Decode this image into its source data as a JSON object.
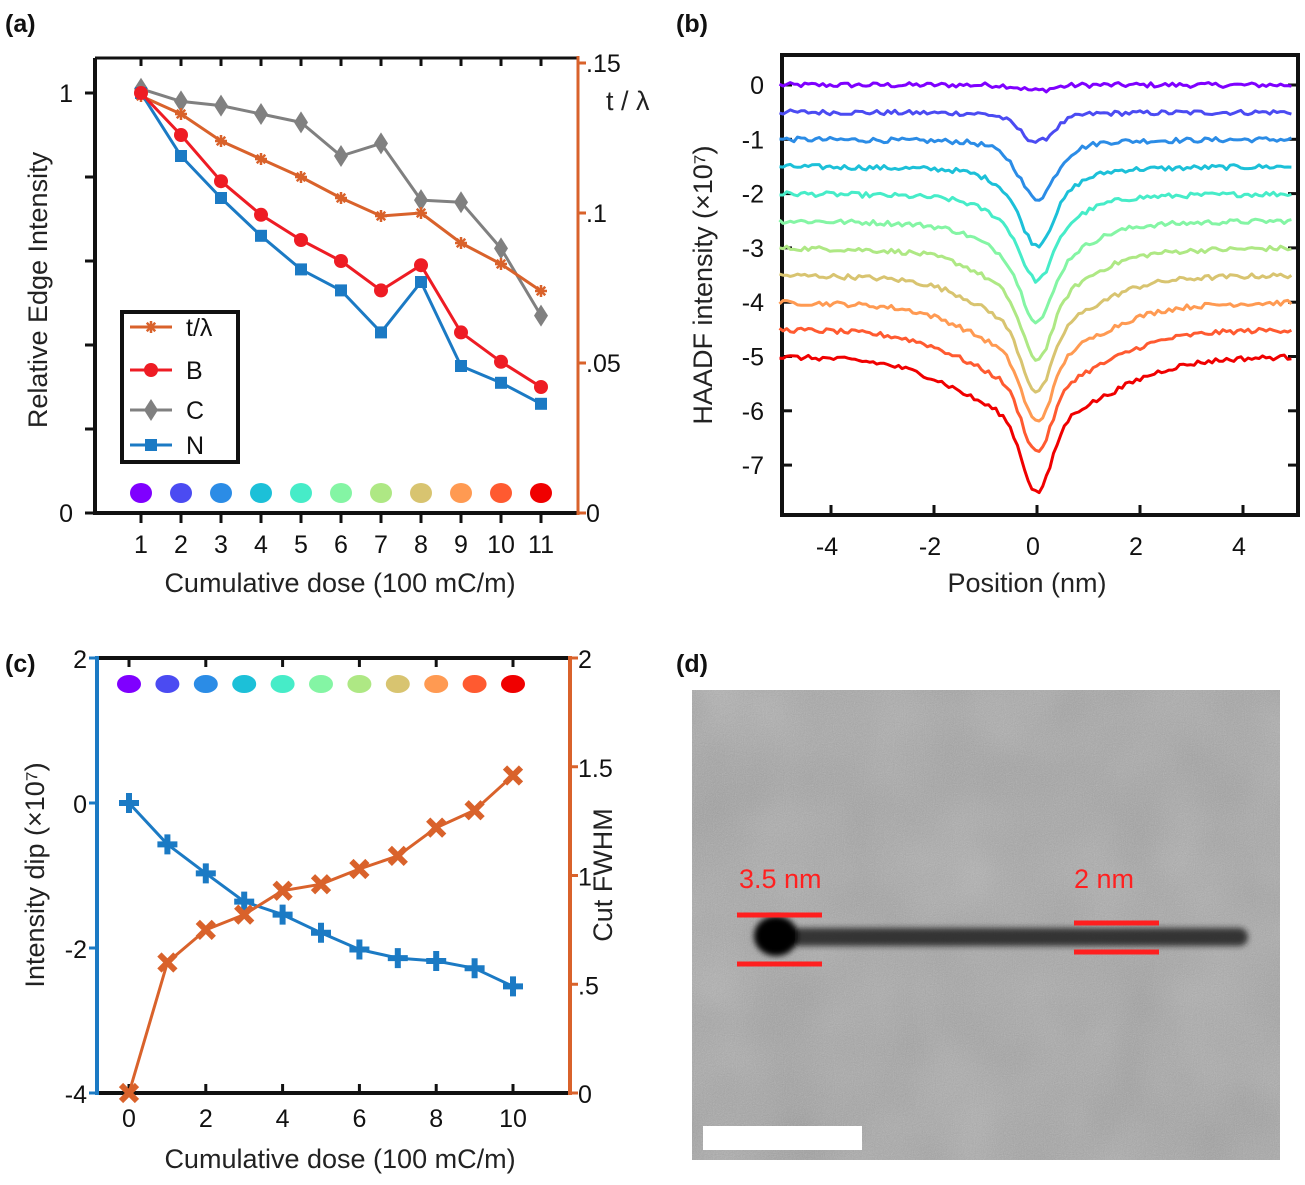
{
  "colors": {
    "orange": "#d9622b",
    "blue": "#1b7ac4",
    "red": "#ee1c24",
    "gray": "#808080",
    "annotation_red": "#ff1f1f",
    "dose_rainbow": [
      "#7f00ff",
      "#4b4bf2",
      "#2b8ce6",
      "#1cc0d8",
      "#46ecc8",
      "#84f5a4",
      "#aee884",
      "#d8c470",
      "#ff9a52",
      "#ff5a30",
      "#f00000"
    ]
  },
  "chart_data": [
    {
      "panel": "(a)",
      "type": "line",
      "xlabel": "Cumulative dose (100 mC/m)",
      "ylabel": "Relative Edge Intensity",
      "y2label": "t / λ",
      "categories": [
        1,
        2,
        3,
        4,
        5,
        6,
        7,
        8,
        9,
        10,
        11
      ],
      "x_tick_labels": [
        "1",
        "2",
        "3",
        "4",
        "5",
        "6",
        "7",
        "8",
        "9",
        "10",
        "11"
      ],
      "y_tick_labels": [
        "1",
        "0"
      ],
      "y2_tick_labels": [
        ".15",
        ".1",
        ".05",
        "0"
      ],
      "ylim": [
        0,
        1.08
      ],
      "y2lim": [
        0,
        0.15
      ],
      "legend": "bottom-left",
      "series": [
        {
          "name": "t/λ",
          "axis": "right",
          "marker": "star",
          "color": "#d9622b",
          "values": [
            0.139,
            0.133,
            0.124,
            0.118,
            0.112,
            0.105,
            0.099,
            0.1,
            0.09,
            0.083,
            0.074
          ]
        },
        {
          "name": "B",
          "axis": "left",
          "marker": "circle",
          "color": "#ee1c24",
          "values": [
            1.0,
            0.9,
            0.79,
            0.71,
            0.65,
            0.6,
            0.53,
            0.59,
            0.43,
            0.36,
            0.3
          ]
        },
        {
          "name": "C",
          "axis": "left",
          "marker": "diamond",
          "color": "#808080",
          "values": [
            1.01,
            0.98,
            0.97,
            0.95,
            0.93,
            0.85,
            0.88,
            0.745,
            0.74,
            0.63,
            0.47
          ]
        },
        {
          "name": "N",
          "axis": "left",
          "marker": "square",
          "color": "#1b7ac4",
          "values": [
            1.0,
            0.85,
            0.75,
            0.66,
            0.58,
            0.53,
            0.43,
            0.55,
            0.35,
            0.31,
            0.26
          ]
        }
      ]
    },
    {
      "panel": "(b)",
      "type": "line",
      "xlabel": "Position (nm)",
      "ylabel": "HAADF intensity (×10⁷)",
      "x_ticks": [
        -4,
        -2,
        0,
        2,
        4
      ],
      "x_tick_labels": [
        "-4",
        "-2",
        "0",
        "2",
        "4"
      ],
      "y_ticks": [
        0,
        -1,
        -2,
        -3,
        -4,
        -5,
        -6,
        -7
      ],
      "y_tick_labels": [
        "0",
        "-1",
        "-2",
        "-3",
        "-4",
        "-5",
        "-6",
        "-7"
      ],
      "xlim": [
        -5,
        5
      ],
      "ylim": [
        -7.9,
        0.55
      ],
      "series": [
        {
          "baseline": 0.0,
          "minimum": -0.1
        },
        {
          "baseline": -0.5,
          "minimum": -1.05
        },
        {
          "baseline": -1.0,
          "minimum": -2.1
        },
        {
          "baseline": -1.5,
          "minimum": -2.95
        },
        {
          "baseline": -2.0,
          "minimum": -3.6
        },
        {
          "baseline": -2.5,
          "minimum": -4.35
        },
        {
          "baseline": -3.0,
          "minimum": -5.05
        },
        {
          "baseline": -3.5,
          "minimum": -5.65
        },
        {
          "baseline": -4.0,
          "minimum": -6.2
        },
        {
          "baseline": -4.5,
          "minimum": -6.75
        },
        {
          "baseline": -5.0,
          "minimum": -7.5
        }
      ]
    },
    {
      "panel": "(c)",
      "type": "line",
      "xlabel": "Cumulative dose (100 mC/m)",
      "ylabel": "Intensity dip (×10⁷)",
      "y2label": "Cut FWHM",
      "x": [
        0,
        1,
        2,
        3,
        4,
        5,
        6,
        7,
        8,
        9,
        10
      ],
      "x_ticks": [
        0,
        2,
        4,
        6,
        8,
        10
      ],
      "x_tick_labels": [
        "0",
        "2",
        "4",
        "6",
        "8",
        "10"
      ],
      "y_ticks": [
        2,
        0,
        -2,
        -4
      ],
      "y_tick_labels": [
        "2",
        "0",
        "-2",
        "-4"
      ],
      "y2_ticks": [
        2,
        1.5,
        1,
        0.5,
        0
      ],
      "y2_tick_labels": [
        "2",
        "1.5",
        "1",
        ".5",
        "0"
      ],
      "xlim": [
        -0.83,
        10.6
      ],
      "ylim": [
        -4,
        2
      ],
      "y2lim": [
        0,
        2
      ],
      "series": [
        {
          "axis": "left",
          "marker": "plus",
          "color": "#1b7ac4",
          "values": [
            0,
            -0.57,
            -0.97,
            -1.36,
            -1.54,
            -1.79,
            -2.02,
            -2.14,
            -2.18,
            -2.28,
            -2.53
          ]
        },
        {
          "axis": "right",
          "marker": "x",
          "color": "#d9622b",
          "values": [
            0,
            0.6,
            0.75,
            0.82,
            0.93,
            0.96,
            1.03,
            1.09,
            1.22,
            1.3,
            1.46
          ]
        }
      ]
    }
  ],
  "panel_d": {
    "panel": "(d)",
    "annotations": [
      "3.5 nm",
      "2 nm"
    ]
  }
}
